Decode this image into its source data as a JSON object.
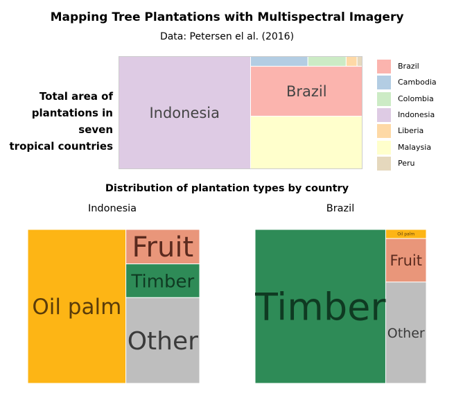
{
  "title": "Mapping Tree Plantations with Multispectral Imagery",
  "subtitle": "Data: Petersen el al. (2016)",
  "top_label": [
    "Total area of",
    "plantations in seven",
    "tropical countries"
  ],
  "section_title": "Distribution of plantation types by country",
  "colors": {
    "Brazil": "#fbb4ae",
    "Cambodia": "#b3cde3",
    "Colombia": "#ccebc5",
    "Indonesia": "#decbe4",
    "Liberia": "#fed9a6",
    "Malaysia": "#ffffcc",
    "Peru": "#e5d8bd",
    "Oil palm": "#fdb515",
    "Fruit": "#e9967a",
    "Timber": "#2e8b57",
    "Other": "#bebebe"
  },
  "legend": [
    "Brazil",
    "Cambodia",
    "Colombia",
    "Indonesia",
    "Liberia",
    "Malaysia",
    "Peru"
  ],
  "chart_data": [
    {
      "type": "treemap",
      "title": "Total area of plantations in seven tropical countries",
      "items": [
        {
          "name": "Indonesia",
          "label": "Indonesia",
          "value": 53.9
        },
        {
          "name": "Brazil",
          "label": "Brazil",
          "value": 20.2
        },
        {
          "name": "Malaysia",
          "label": "",
          "value": 21.4
        },
        {
          "name": "Cambodia",
          "label": "",
          "value": 2.1
        },
        {
          "name": "Colombia",
          "label": "",
          "value": 1.4
        },
        {
          "name": "Liberia",
          "label": "",
          "value": 0.4
        },
        {
          "name": "Peru",
          "label": "",
          "value": 0.2
        }
      ]
    },
    {
      "type": "treemap",
      "title": "Indonesia",
      "items": [
        {
          "name": "Oil palm",
          "value": 57.1
        },
        {
          "name": "Fruit",
          "value": 9.6
        },
        {
          "name": "Timber",
          "value": 9.4
        },
        {
          "name": "Other",
          "value": 23.9
        }
      ]
    },
    {
      "type": "treemap",
      "title": "Brazil",
      "items": [
        {
          "name": "Timber",
          "value": 76.3
        },
        {
          "name": "Oil palm",
          "value": 1.4
        },
        {
          "name": "Fruit",
          "value": 6.7
        },
        {
          "name": "Other",
          "value": 15.6
        }
      ]
    }
  ]
}
